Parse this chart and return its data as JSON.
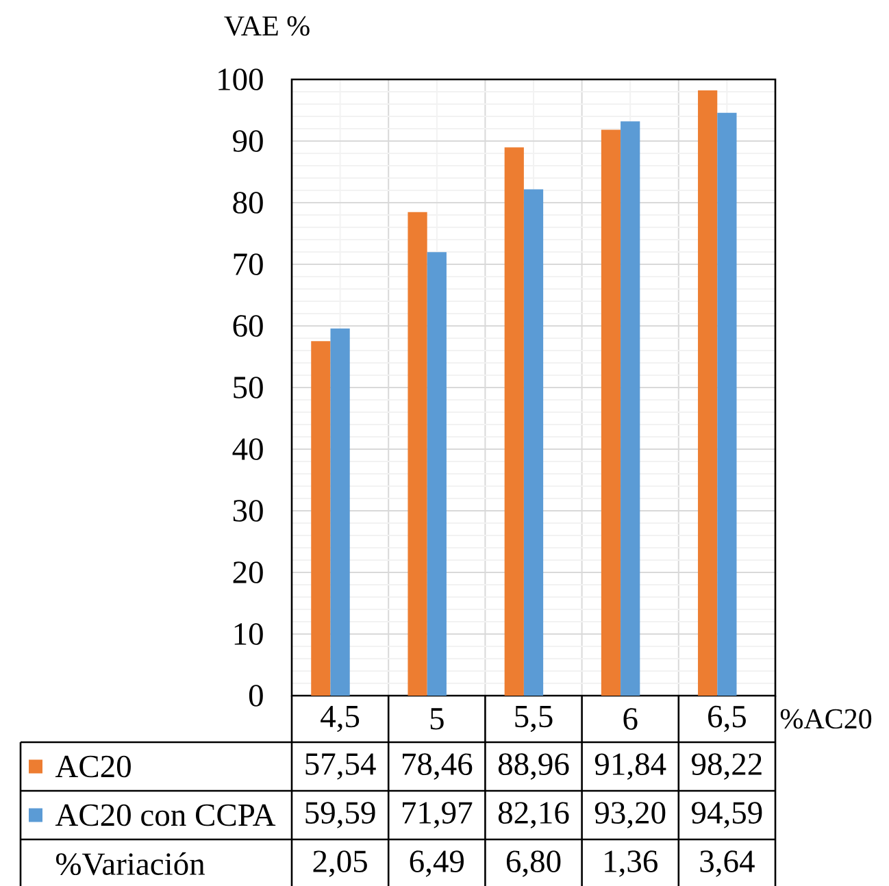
{
  "chart_data": {
    "type": "bar",
    "xlabel": "%AC20",
    "ylabel": "VAE %",
    "categories": [
      "4,5",
      "5",
      "5,5",
      "6",
      "6,5"
    ],
    "series": [
      {
        "name": "AC20",
        "color": "#ED7D31",
        "values": [
          57.54,
          78.46,
          88.96,
          91.84,
          98.22
        ],
        "value_labels": [
          "57,54",
          "78,46",
          "88,96",
          "91,84",
          "98,22"
        ]
      },
      {
        "name": "AC20 con CCPA",
        "color": "#5B9BD5",
        "values": [
          59.59,
          71.97,
          82.16,
          93.2,
          94.59
        ],
        "value_labels": [
          "59,59",
          "71,97",
          "82,16",
          "93,20",
          "94,59"
        ]
      }
    ],
    "annotations": [
      "%Variación",
      "2,05",
      "6,49",
      "6,80",
      "1,36",
      "3,64"
    ],
    "ylim": [
      0,
      100
    ],
    "yticks": [
      0,
      10,
      20,
      30,
      40,
      50,
      60,
      70,
      80,
      90,
      100
    ],
    "grid": true,
    "legend": "bottom"
  }
}
